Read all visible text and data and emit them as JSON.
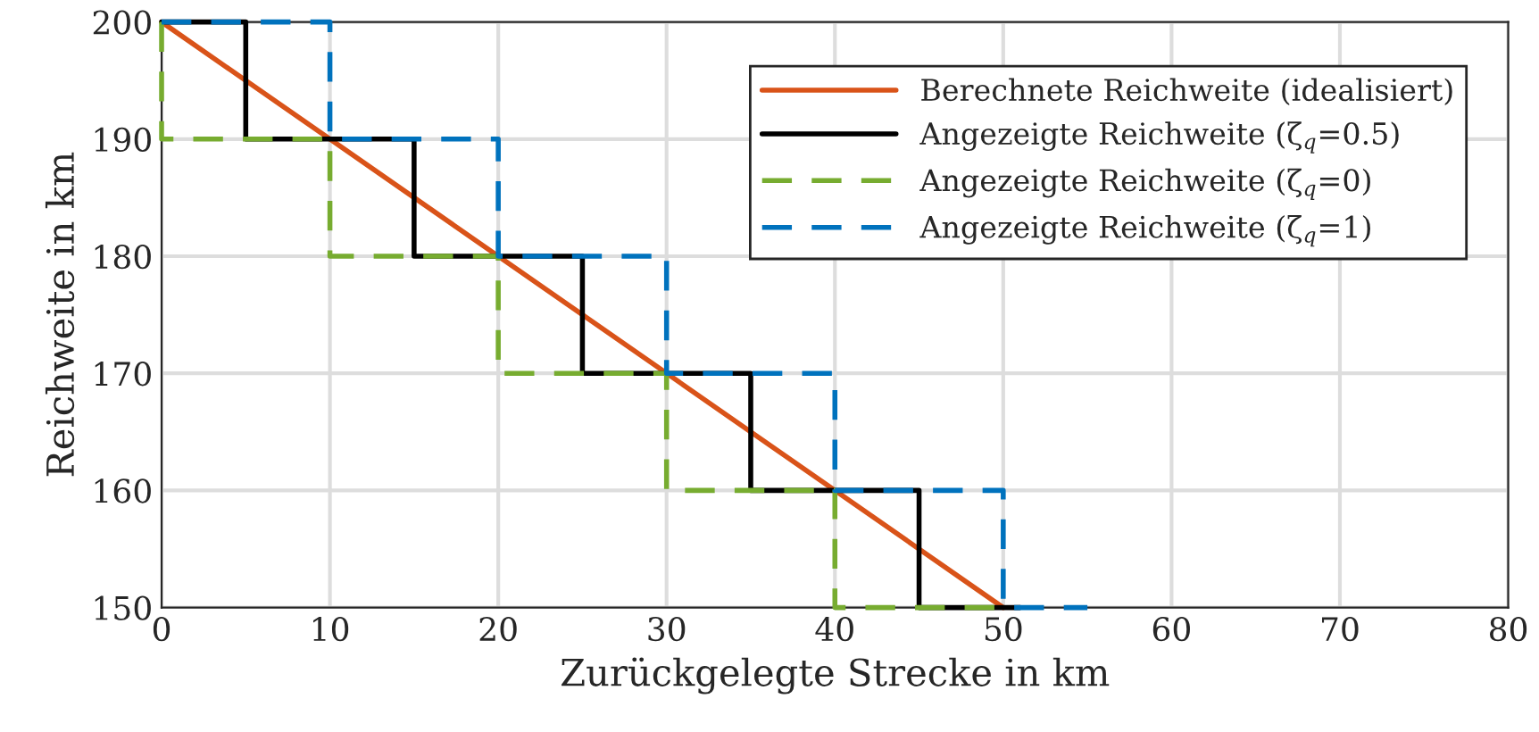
{
  "chart_data": {
    "type": "line",
    "xlabel": "Zurückgelegte Strecke in km",
    "ylabel": "Reichweite in km",
    "xlim": [
      0,
      80
    ],
    "xticks": [
      0,
      10,
      20,
      30,
      40,
      50,
      60,
      70,
      80
    ],
    "ylim": [
      150,
      200
    ],
    "yticks": [
      150,
      160,
      170,
      180,
      190,
      200
    ],
    "grid": true,
    "legend": "top right",
    "series": [
      {
        "name": "Berechnete Reichweite (idealisiert)",
        "color": "#d95319",
        "line_style": "solid",
        "x": [
          0,
          50
        ],
        "values": [
          200,
          150
        ]
      },
      {
        "name": "Angezeigte Reichweite (ζ$_{q}$=0.5)",
        "color": "#000000",
        "line_style": "solid",
        "x": [
          0,
          5,
          5,
          15,
          15,
          25,
          25,
          35,
          35,
          45,
          45,
          51
        ],
        "values": [
          200,
          200,
          190,
          190,
          180,
          180,
          170,
          170,
          160,
          160,
          150,
          150
        ]
      },
      {
        "name": "Angezeigte Reichweite (ζ$_{q}$=0)",
        "color": "#77ac30",
        "line_style": "dashed",
        "x": [
          0,
          0,
          10,
          10,
          20,
          20,
          30,
          30,
          40,
          40,
          50
        ],
        "values": [
          200,
          190,
          190,
          180,
          180,
          170,
          170,
          160,
          160,
          150,
          150
        ]
      },
      {
        "name": "Angezeigte Reichweite (ζ$_{q}$=1)",
        "color": "#0072bd",
        "line_style": "dashed",
        "x": [
          0,
          10,
          10,
          20,
          20,
          30,
          30,
          40,
          40,
          50,
          50,
          55
        ],
        "values": [
          200,
          200,
          190,
          190,
          180,
          180,
          170,
          170,
          160,
          160,
          150,
          150
        ]
      }
    ]
  }
}
